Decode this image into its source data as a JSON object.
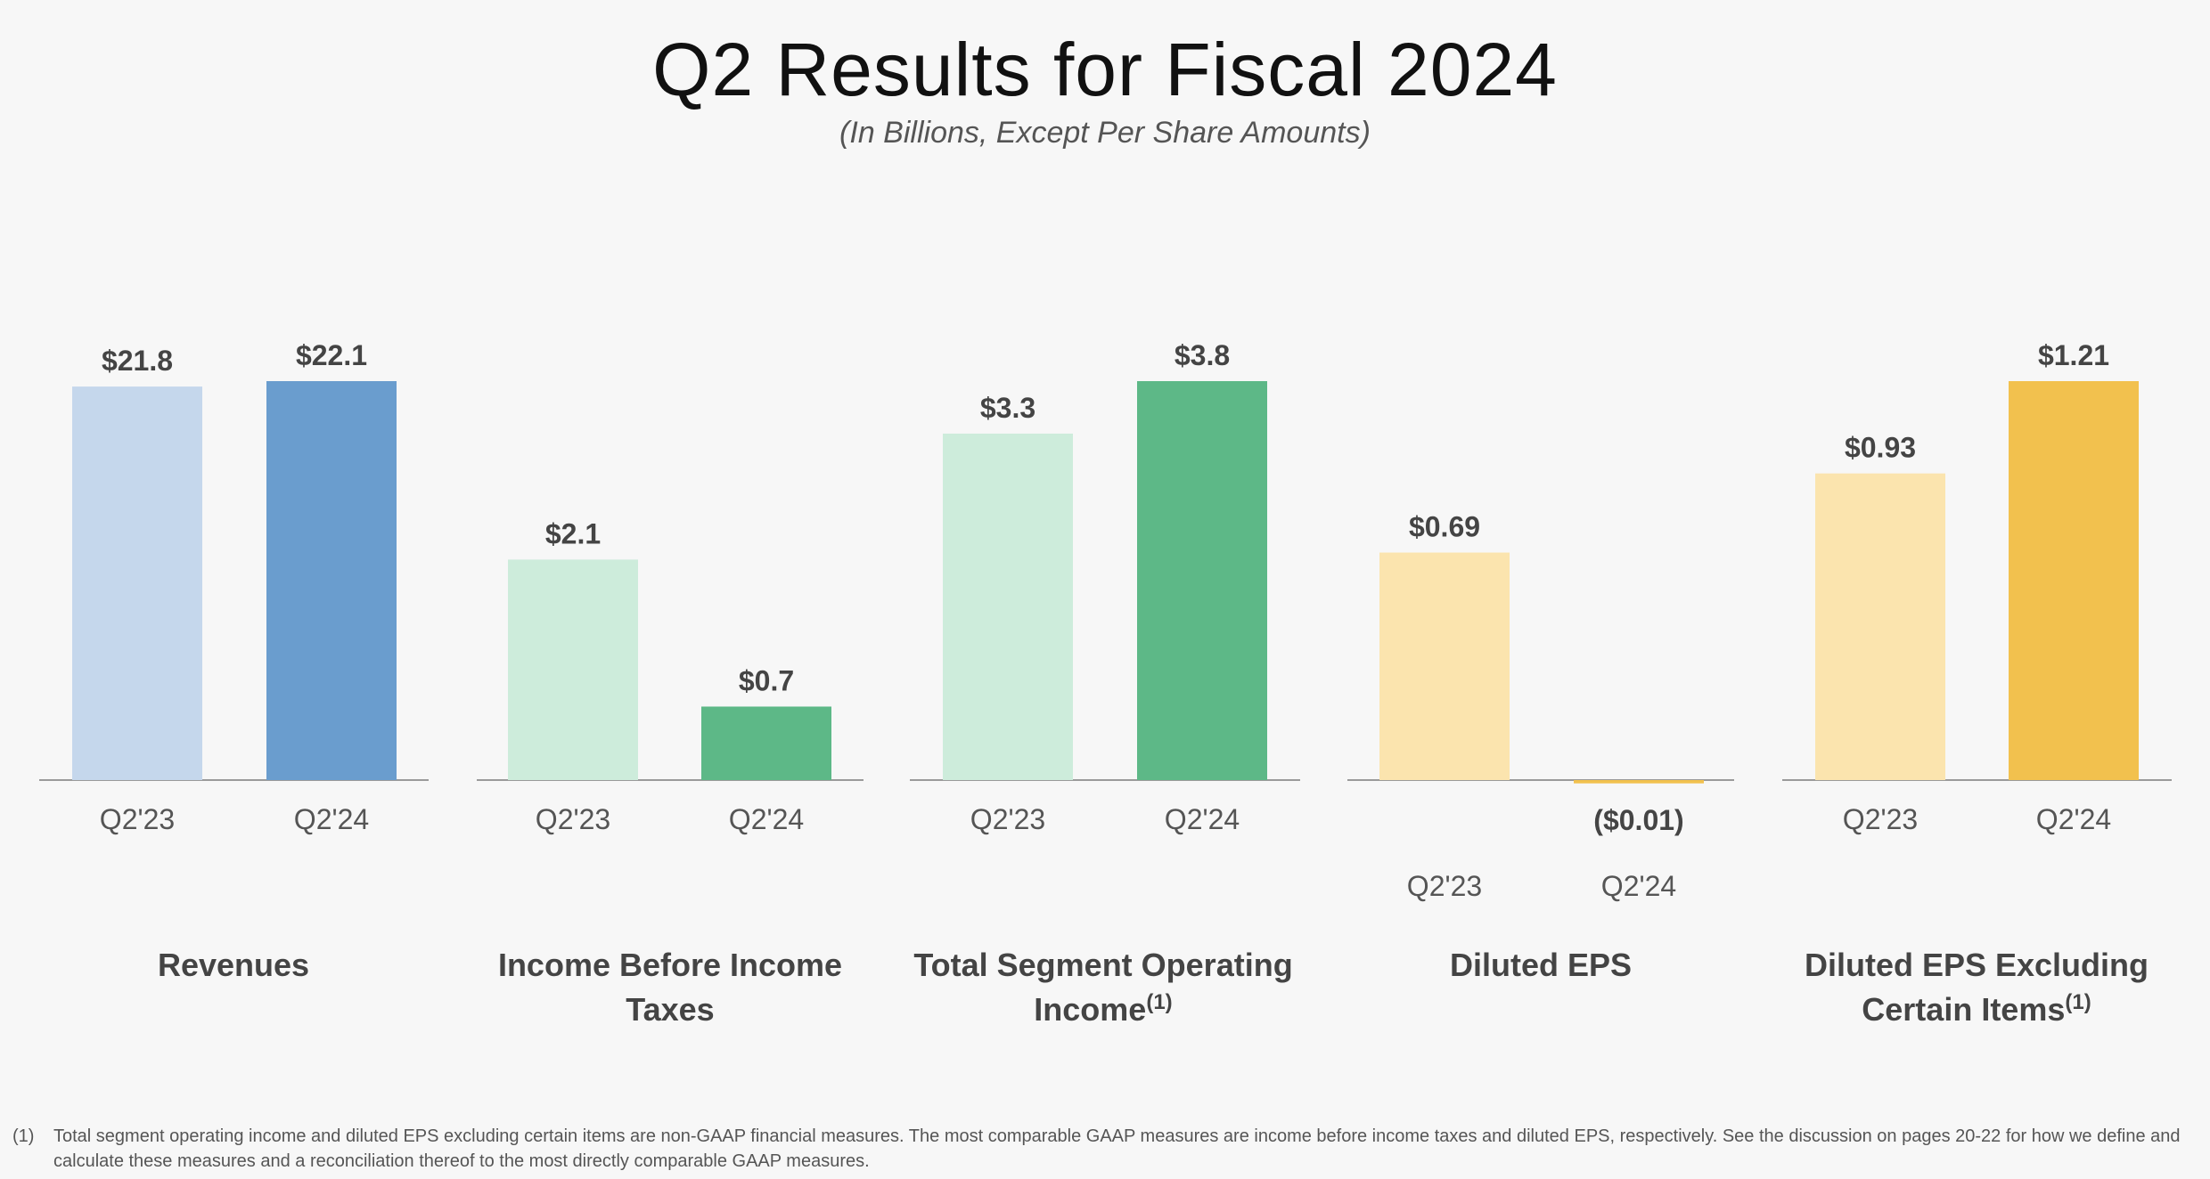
{
  "title": "Q2 Results for Fiscal 2024",
  "subtitle": "(In Billions, Except Per Share Amounts)",
  "chart_data": [
    {
      "type": "bar",
      "title": "Revenues",
      "title_note": "",
      "categories": [
        "Q2'23",
        "Q2'24"
      ],
      "values": [
        21.8,
        22.1
      ],
      "value_labels": [
        "$21.8",
        "$22.1"
      ],
      "colors": [
        "#c5d7ec",
        "#6a9dce"
      ],
      "ylim": [
        0,
        22.1
      ]
    },
    {
      "type": "bar",
      "title": "Income Before Income Taxes",
      "title_note": "",
      "categories": [
        "Q2'23",
        "Q2'24"
      ],
      "values": [
        2.1,
        0.7
      ],
      "value_labels": [
        "$2.1",
        "$0.7"
      ],
      "colors": [
        "#cdecdb",
        "#5db887"
      ],
      "ylim": [
        0,
        3.8
      ]
    },
    {
      "type": "bar",
      "title": "Total Segment Operating Income",
      "title_note": "(1)",
      "categories": [
        "Q2'23",
        "Q2'24"
      ],
      "values": [
        3.3,
        3.8
      ],
      "value_labels": [
        "$3.3",
        "$3.8"
      ],
      "colors": [
        "#cdecdb",
        "#5db887"
      ],
      "ylim": [
        0,
        3.8
      ]
    },
    {
      "type": "bar",
      "title": "Diluted EPS",
      "title_note": "",
      "categories": [
        "Q2'23",
        "Q2'24"
      ],
      "values": [
        0.69,
        -0.01
      ],
      "value_labels": [
        "$0.69",
        "($0.01)"
      ],
      "colors": [
        "#fbe4ae",
        "#f2c14e"
      ],
      "ylim": [
        0,
        1.21
      ]
    },
    {
      "type": "bar",
      "title": "Diluted EPS Excluding Certain Items",
      "title_note": "(1)",
      "categories": [
        "Q2'23",
        "Q2'24"
      ],
      "values": [
        0.93,
        1.21
      ],
      "value_labels": [
        "$0.93",
        "$1.21"
      ],
      "colors": [
        "#fbe4ae",
        "#f2c14e"
      ],
      "ylim": [
        0,
        1.21
      ]
    }
  ],
  "footnote": {
    "mark": "(1)",
    "text": "Total segment operating income and diluted EPS excluding certain items are non-GAAP financial measures. The most comparable GAAP measures are income before income taxes and diluted EPS, respectively. See the discussion on pages 20-22 for how we define and calculate these measures and a reconciliation thereof to the most directly comparable GAAP measures."
  }
}
